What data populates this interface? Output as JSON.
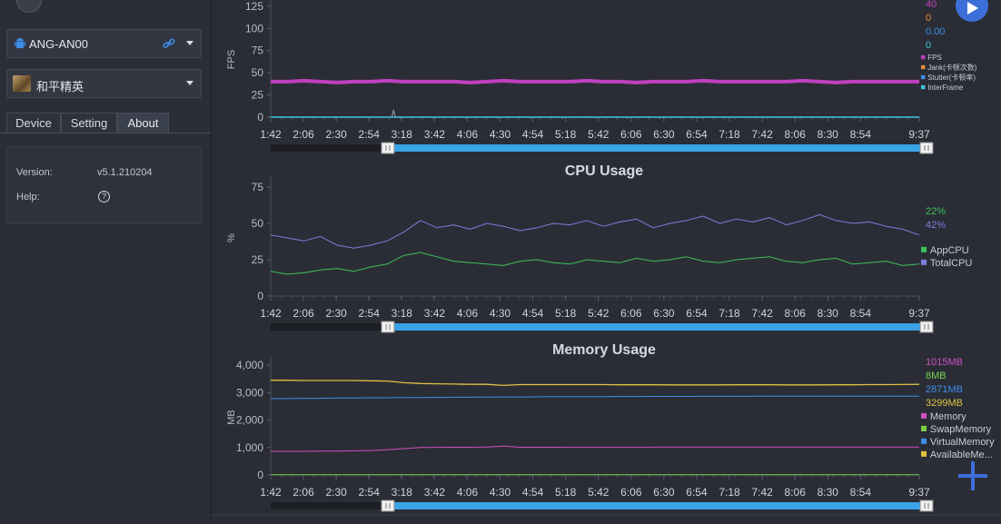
{
  "device": {
    "name": "ANG-AN00"
  },
  "app": {
    "name": "和平精英"
  },
  "tabs": [
    {
      "label": "Device"
    },
    {
      "label": "Setting"
    },
    {
      "label": "About"
    }
  ],
  "about": {
    "version_label": "Version:",
    "version_value": "v5.1.210204",
    "help_label": "Help:",
    "help_icon_glyph": "?"
  },
  "time_ticks": [
    "1:42",
    "2:06",
    "2:30",
    "2:54",
    "3:18",
    "3:42",
    "4:06",
    "4:30",
    "4:54",
    "5:18",
    "5:42",
    "6:06",
    "6:30",
    "6:54",
    "7:18",
    "7:42",
    "8:06",
    "8:30",
    "8:54",
    "9:37"
  ],
  "colors": {
    "fps": "#c040c0",
    "jank": "#e58a3a",
    "stutter": "#3e8ee8",
    "interframe": "#3ec6e0",
    "appcpu": "#3ec05a",
    "totalcpu": "#7b7fd9",
    "memory": "#d050c0",
    "swap": "#7ad04a",
    "virtual": "#3e8ee8",
    "available": "#e0c040",
    "accent": "#3d6fd8"
  },
  "chart_data": [
    {
      "type": "line",
      "title": "",
      "ylabel": "FPS",
      "yticks": [
        "0",
        "25",
        "50",
        "75",
        "100",
        "125"
      ],
      "ylim": [
        0,
        130
      ],
      "current_values": [
        "40",
        "0",
        "0.00",
        "0"
      ],
      "legend": [
        "FPS",
        "Jank(卡顿次数)",
        "Stutter(卡顿率)",
        "InterFrame"
      ],
      "series": [
        {
          "name": "FPS",
          "values": [
            40,
            40,
            41,
            40,
            39,
            40,
            40,
            41,
            40,
            40,
            40,
            40,
            39,
            40,
            41,
            40,
            40,
            40,
            40,
            41,
            40,
            40,
            39,
            40,
            40,
            40,
            41,
            40,
            40,
            40,
            40,
            40,
            41,
            40,
            39,
            40,
            40,
            40,
            40,
            40
          ]
        },
        {
          "name": "InterFrame",
          "values": [
            0,
            0,
            0,
            0,
            0,
            0,
            0,
            0,
            0,
            0,
            0,
            0,
            0,
            0,
            0,
            0,
            0,
            0,
            0,
            0,
            0,
            0,
            0,
            0,
            0,
            0,
            0,
            0,
            0,
            0,
            0,
            0,
            0,
            0,
            0,
            0,
            0,
            0,
            0,
            0
          ]
        }
      ],
      "spike": {
        "time": "3:12",
        "value": 8
      },
      "legend_position": "right"
    },
    {
      "type": "line",
      "title": "CPU Usage",
      "ylabel": "%",
      "yticks": [
        "0",
        "25",
        "50",
        "75"
      ],
      "ylim": [
        0,
        80
      ],
      "current_values": [
        "22%",
        "42%"
      ],
      "legend": [
        "AppCPU",
        "TotalCPU"
      ],
      "series": [
        {
          "name": "AppCPU",
          "values": [
            17,
            15,
            16,
            18,
            19,
            17,
            20,
            22,
            28,
            30,
            27,
            24,
            23,
            22,
            21,
            24,
            25,
            23,
            22,
            25,
            24,
            23,
            26,
            24,
            25,
            27,
            24,
            23,
            25,
            26,
            27,
            24,
            23,
            25,
            26,
            22,
            23,
            24,
            21,
            22
          ]
        },
        {
          "name": "TotalCPU",
          "values": [
            42,
            40,
            38,
            41,
            35,
            33,
            35,
            38,
            44,
            52,
            47,
            49,
            46,
            50,
            48,
            45,
            47,
            50,
            49,
            52,
            48,
            51,
            53,
            47,
            50,
            52,
            55,
            50,
            53,
            51,
            54,
            49,
            52,
            56,
            52,
            50,
            51,
            48,
            46,
            42
          ]
        }
      ],
      "legend_position": "right"
    },
    {
      "type": "line",
      "title": "Memory Usage",
      "ylabel": "MB",
      "yticks": [
        "0",
        "1,000",
        "2,000",
        "3,000",
        "4,000"
      ],
      "ylim": [
        0,
        4200
      ],
      "current_values": [
        "1015MB",
        "8MB",
        "2871MB",
        "3299MB"
      ],
      "legend": [
        "Memory",
        "SwapMemory",
        "VirtualMemory",
        "AvailableMe..."
      ],
      "series": [
        {
          "name": "Memory",
          "values": [
            860,
            860,
            860,
            865,
            870,
            880,
            890,
            920,
            960,
            1000,
            1005,
            1010,
            1010,
            1015,
            1050,
            1010,
            1010,
            1010,
            1012,
            1012,
            1012,
            1013,
            1013,
            1013,
            1014,
            1014,
            1014,
            1014,
            1015,
            1015,
            1015,
            1015,
            1015,
            1015,
            1015,
            1015,
            1015,
            1015,
            1015,
            1015
          ]
        },
        {
          "name": "SwapMemory",
          "values": [
            8,
            8,
            8,
            8,
            8,
            8,
            8,
            8,
            8,
            8,
            8,
            8,
            8,
            8,
            8,
            8,
            8,
            8,
            8,
            8,
            8,
            8,
            8,
            8,
            8,
            8,
            8,
            8,
            8,
            8,
            8,
            8,
            8,
            8,
            8,
            8,
            8,
            8,
            8,
            8
          ]
        },
        {
          "name": "VirtualMemory",
          "values": [
            2780,
            2780,
            2790,
            2790,
            2800,
            2800,
            2810,
            2810,
            2820,
            2820,
            2825,
            2830,
            2830,
            2835,
            2840,
            2840,
            2845,
            2850,
            2850,
            2852,
            2855,
            2856,
            2858,
            2860,
            2860,
            2862,
            2863,
            2864,
            2865,
            2866,
            2867,
            2868,
            2868,
            2869,
            2869,
            2870,
            2870,
            2871,
            2871,
            2871
          ]
        },
        {
          "name": "AvailableMemory",
          "values": [
            3450,
            3450,
            3440,
            3440,
            3440,
            3440,
            3430,
            3420,
            3360,
            3330,
            3320,
            3310,
            3300,
            3300,
            3260,
            3290,
            3290,
            3290,
            3290,
            3290,
            3290,
            3285,
            3285,
            3285,
            3280,
            3280,
            3280,
            3280,
            3285,
            3285,
            3285,
            3280,
            3280,
            3280,
            3285,
            3285,
            3290,
            3290,
            3295,
            3299
          ]
        }
      ],
      "legend_position": "right"
    }
  ]
}
